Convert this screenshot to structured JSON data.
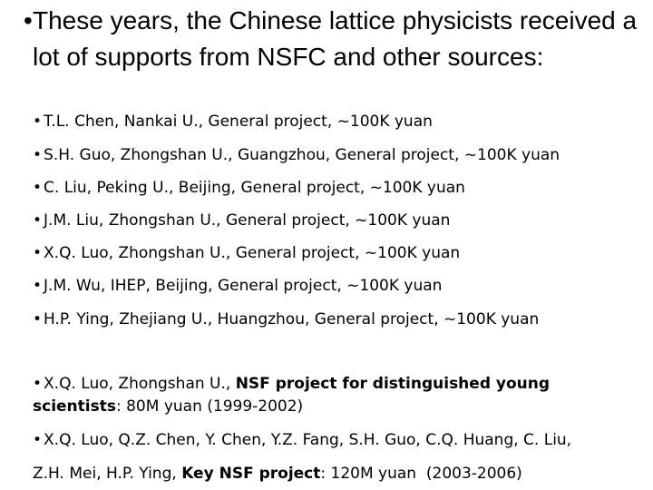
{
  "heading": {
    "bullet": "•",
    "text": "These years, the Chinese lattice physicists received a lot of supports from NSFC and other sources:"
  },
  "general_projects": [
    {
      "bullet": "•",
      "text": "T.L. Chen, Nankai U., General project, ~100K yuan"
    },
    {
      "bullet": "•",
      "text": "S.H. Guo, Zhongshan U., Guangzhou, General project, ~100K yuan"
    },
    {
      "bullet": "•",
      "text": "C. Liu, Peking U., Beijing, General project, ~100K yuan"
    },
    {
      "bullet": "•",
      "text": "J.M. Liu, Zhongshan U., General project, ~100K yuan"
    },
    {
      "bullet": "•",
      "text": "X.Q. Luo, Zhongshan U., General project, ~100K yuan"
    },
    {
      "bullet": "•",
      "text": "J.M. Wu, IHEP, Beijing, General project, ~100K yuan"
    },
    {
      "bullet": "•",
      "text": "H.P. Ying, Zhejiang U., Huangzhou, General project, ~100K yuan"
    }
  ],
  "young_scientist": {
    "bullet": "•",
    "prefix": "X.Q. Luo, Zhongshan U., ",
    "bold": "NSF project for distinguished young scientists",
    "suffix": ": 80M yuan (1999-2002)"
  },
  "key_project": {
    "bullet": "•",
    "line1": "X.Q. Luo, Q.Z. Chen, Y. Chen, Y.Z. Fang, S.H. Guo, C.Q. Huang, C. Liu,",
    "line2_prefix": "Z.H. Mei, H.P. Ying, ",
    "line2_bold": "Key NSF project",
    "line2_suffix": ": 120M yuan  (2003-2006)"
  }
}
